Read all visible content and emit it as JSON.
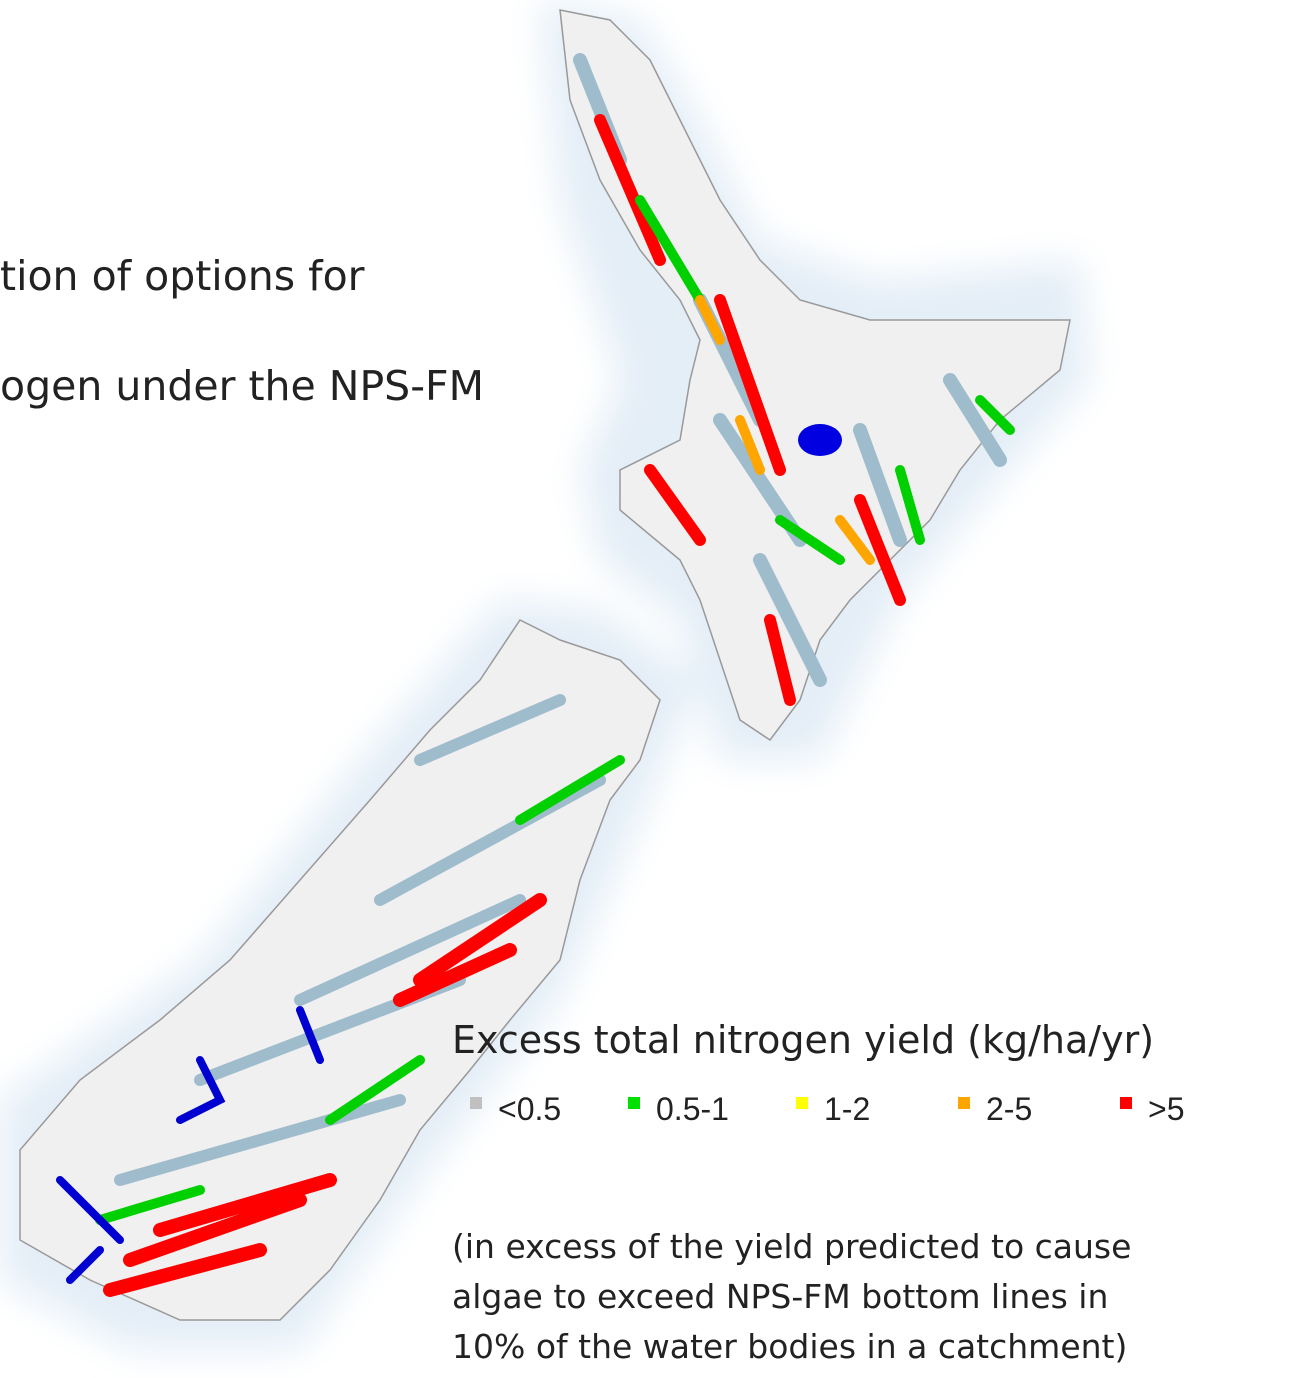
{
  "title_lines": [
    "tion of options for",
    "ogen under the NPS-FM"
  ],
  "legend": {
    "title": "Excess total nitrogen yield (kg/ha/yr)",
    "items": [
      {
        "label": "<0.5",
        "color": "#c0c0c0"
      },
      {
        "label": "0.5-1",
        "color": "#00e000"
      },
      {
        "label": "1-2",
        "color": "#ffff00"
      },
      {
        "label": "2-5",
        "color": "#ffa500"
      },
      {
        "label": ">5",
        "color": "#ff0000"
      }
    ]
  },
  "note_lines": [
    "(in excess of the yield predicted to cause",
    "algae to exceed NPS-FM bottom lines in",
    "10% of the water bodies in a catchment)"
  ]
}
